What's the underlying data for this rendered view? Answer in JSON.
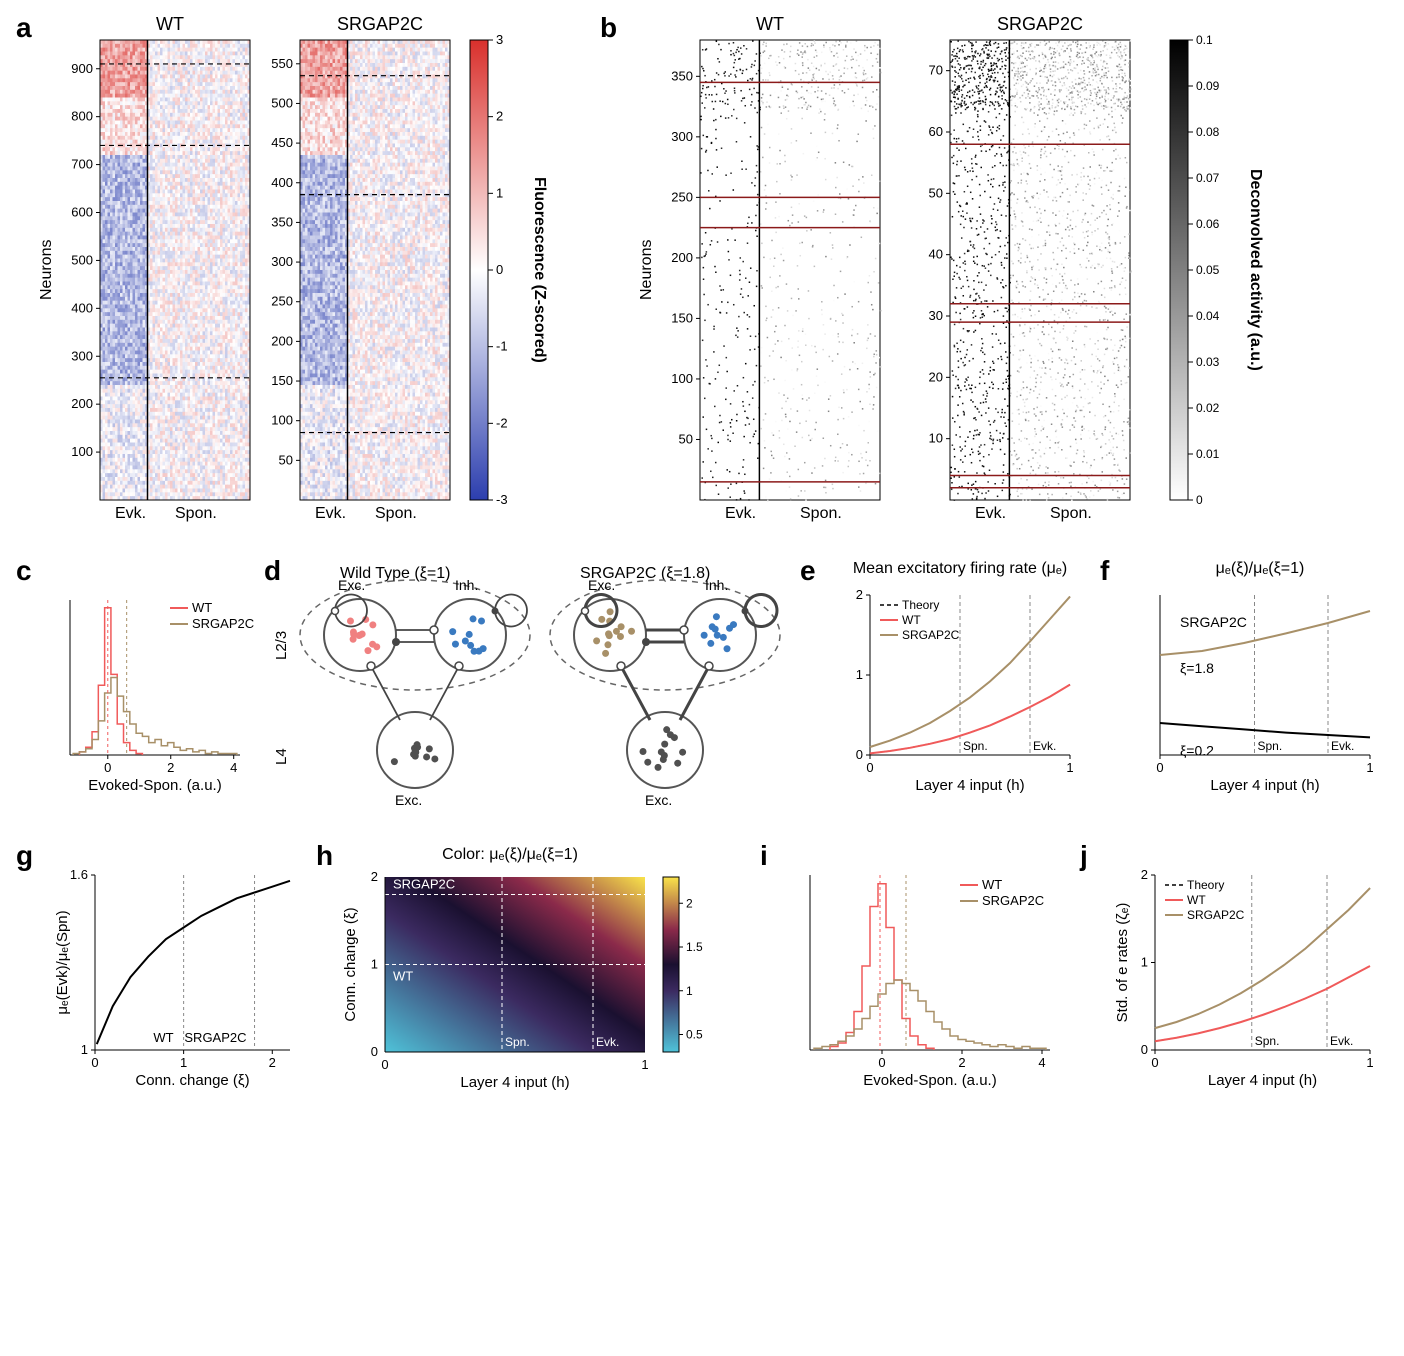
{
  "colors": {
    "wt": "#f05a5a",
    "srgap2c": "#a89068",
    "cb_pos": "#d9302c",
    "cb_neg": "#2c3eae",
    "cb_mid": "#ffffff",
    "gray_dark": "#404040",
    "black": "#000000",
    "exc_node_wt": "#f08080",
    "inh_node": "#3a7ac0",
    "l4_node": "#505050",
    "h_cmap_low": "#4fc3d9",
    "h_cmap_mid1": "#3b2a60",
    "h_cmap_mid2": "#1a1030",
    "h_cmap_high": "#f9e34a",
    "red_line": "#8b1a1a"
  },
  "panel_a": {
    "label": "a",
    "wt_title": "WT",
    "srgap2c_title": "SRGAP2C",
    "ylabel": "Neurons",
    "xlabel_evk": "Evk.",
    "xlabel_spon": "Spon.",
    "cbar_label": "Fluorescence (Z-scored)",
    "cbar_ticks": [
      -3,
      -2,
      -1,
      0,
      1,
      2,
      3
    ],
    "wt_yticks": [
      100,
      200,
      300,
      400,
      500,
      600,
      700,
      800,
      900
    ],
    "srgap2c_yticks": [
      50,
      100,
      150,
      200,
      250,
      300,
      350,
      400,
      450,
      500,
      550
    ]
  },
  "panel_b": {
    "label": "b",
    "wt_title": "WT",
    "srgap2c_title": "SRGAP2C",
    "ylabel": "Neurons",
    "xlabel_evk": "Evk.",
    "xlabel_spon": "Spon.",
    "cbar_label": "Deconvolved activity (a.u.)",
    "cbar_ticks": [
      0,
      0.01,
      0.02,
      0.03,
      0.04,
      0.05,
      0.06,
      0.07,
      0.08,
      0.09,
      0.1
    ],
    "wt_yticks": [
      50,
      100,
      150,
      200,
      250,
      300,
      350
    ],
    "srgap2c_yticks": [
      10,
      20,
      30,
      40,
      50,
      60,
      70
    ]
  },
  "panel_c": {
    "label": "c",
    "xlabel": "Evoked-Spon. (a.u.)",
    "xticks": [
      0,
      2,
      4
    ],
    "legend": [
      "WT",
      "SRGAP2C"
    ],
    "wt_bins": [
      [
        -0.8,
        0.02
      ],
      [
        -0.6,
        0.05
      ],
      [
        -0.4,
        0.15
      ],
      [
        -0.2,
        0.45
      ],
      [
        0.0,
        0.95
      ],
      [
        0.2,
        0.52
      ],
      [
        0.4,
        0.2
      ],
      [
        0.6,
        0.08
      ],
      [
        0.8,
        0.03
      ],
      [
        1.0,
        0.01
      ]
    ],
    "sg_bins": [
      [
        -1.0,
        0.01
      ],
      [
        -0.8,
        0.02
      ],
      [
        -0.6,
        0.04
      ],
      [
        -0.4,
        0.1
      ],
      [
        -0.2,
        0.22
      ],
      [
        0.0,
        0.4
      ],
      [
        0.2,
        0.5
      ],
      [
        0.4,
        0.38
      ],
      [
        0.6,
        0.28
      ],
      [
        0.8,
        0.2
      ],
      [
        1.0,
        0.14
      ],
      [
        1.2,
        0.12
      ],
      [
        1.4,
        0.08
      ],
      [
        1.6,
        0.1
      ],
      [
        1.8,
        0.06
      ],
      [
        2.0,
        0.08
      ],
      [
        2.2,
        0.05
      ],
      [
        2.4,
        0.03
      ],
      [
        2.6,
        0.04
      ],
      [
        2.8,
        0.02
      ],
      [
        3.0,
        0.03
      ],
      [
        3.2,
        0.01
      ],
      [
        3.4,
        0.02
      ],
      [
        3.6,
        0.01
      ],
      [
        3.8,
        0.01
      ],
      [
        4.0,
        0.01
      ]
    ],
    "wt_mean": 0.0,
    "sg_mean": 0.6
  },
  "panel_d": {
    "label": "d",
    "wt_title": "Wild Type (ξ=1)",
    "srgap2c_title": "SRGAP2C (ξ=1.8)",
    "exc_label": "Exc.",
    "inh_label": "Inh.",
    "layer23": "L2/3",
    "layer4": "L4"
  },
  "panel_e": {
    "label": "e",
    "title": "Mean excitatory firing rate (μₑ)",
    "xlabel": "Layer 4 input (h)",
    "legend": [
      "Theory",
      "WT",
      "SRGAP2C"
    ],
    "xticks": [
      0,
      1
    ],
    "yticks": [
      0,
      1,
      2
    ],
    "spn_x": 0.45,
    "evk_x": 0.8,
    "wt_curve": [
      [
        0,
        0.02
      ],
      [
        0.1,
        0.05
      ],
      [
        0.2,
        0.09
      ],
      [
        0.3,
        0.14
      ],
      [
        0.4,
        0.2
      ],
      [
        0.5,
        0.28
      ],
      [
        0.6,
        0.37
      ],
      [
        0.7,
        0.48
      ],
      [
        0.8,
        0.6
      ],
      [
        0.9,
        0.73
      ],
      [
        1.0,
        0.88
      ]
    ],
    "sg_curve": [
      [
        0,
        0.1
      ],
      [
        0.1,
        0.18
      ],
      [
        0.2,
        0.28
      ],
      [
        0.3,
        0.4
      ],
      [
        0.4,
        0.55
      ],
      [
        0.5,
        0.72
      ],
      [
        0.6,
        0.92
      ],
      [
        0.7,
        1.15
      ],
      [
        0.8,
        1.42
      ],
      [
        0.9,
        1.7
      ],
      [
        1.0,
        1.98
      ]
    ]
  },
  "panel_f": {
    "label": "f",
    "title": "μₑ(ξ)/μₑ(ξ=1)",
    "xlabel": "Layer 4 input (h)",
    "xticks": [
      0,
      1
    ],
    "spn_x": 0.45,
    "evk_x": 0.8,
    "label_sg": "SRGAP2C",
    "label_xi_hi": "ξ=1.8",
    "label_xi_lo": "ξ=0.2",
    "sg_curve": [
      [
        0,
        1.55
      ],
      [
        0.2,
        1.6
      ],
      [
        0.4,
        1.7
      ],
      [
        0.6,
        1.82
      ],
      [
        0.8,
        1.95
      ],
      [
        1.0,
        2.1
      ]
    ],
    "lo_curve": [
      [
        0,
        0.7
      ],
      [
        0.2,
        0.66
      ],
      [
        0.4,
        0.62
      ],
      [
        0.6,
        0.58
      ],
      [
        0.8,
        0.55
      ],
      [
        1.0,
        0.52
      ]
    ]
  },
  "panel_g": {
    "label": "g",
    "ylabel": "μₑ(Evk)/μₑ(Spn)",
    "xlabel": "Conn. change (ξ)",
    "xticks": [
      0,
      1,
      2
    ],
    "yticks": [
      1.0,
      1.6
    ],
    "wt_x": 1.0,
    "sg_x": 1.8,
    "curve": [
      [
        0.02,
        1.02
      ],
      [
        0.2,
        1.15
      ],
      [
        0.4,
        1.25
      ],
      [
        0.6,
        1.32
      ],
      [
        0.8,
        1.38
      ],
      [
        1.0,
        1.42
      ],
      [
        1.2,
        1.46
      ],
      [
        1.4,
        1.49
      ],
      [
        1.6,
        1.52
      ],
      [
        1.8,
        1.54
      ],
      [
        2.0,
        1.56
      ],
      [
        2.2,
        1.58
      ]
    ],
    "wt_text": "WT",
    "sg_text": "SRGAP2C"
  },
  "panel_h": {
    "label": "h",
    "title": "Color: μₑ(ξ)/μₑ(ξ=1)",
    "ylabel": "Conn. change (ξ)",
    "xlabel": "Layer 4 input (h)",
    "xticks": [
      0,
      1
    ],
    "yticks": [
      0,
      1,
      2
    ],
    "cbar_ticks": [
      0.5,
      1.0,
      1.5,
      2.0
    ],
    "spn_x": 0.45,
    "evk_x": 0.8,
    "wt_y": 1.0,
    "sg_y": 1.8,
    "wt_text": "WT",
    "sg_text": "SRGAP2C",
    "spn_text": "Spn.",
    "evk_text": "Evk."
  },
  "panel_i": {
    "label": "i",
    "xlabel": "Evoked-Spon. (a.u.)",
    "xticks": [
      0,
      2,
      4
    ],
    "legend": [
      "WT",
      "SRGAP2C"
    ],
    "wt_bins": [
      [
        -1.2,
        0.02
      ],
      [
        -1.0,
        0.04
      ],
      [
        -0.8,
        0.1
      ],
      [
        -0.6,
        0.22
      ],
      [
        -0.4,
        0.48
      ],
      [
        -0.2,
        0.82
      ],
      [
        0.0,
        0.95
      ],
      [
        0.2,
        0.7
      ],
      [
        0.4,
        0.4
      ],
      [
        0.6,
        0.18
      ],
      [
        0.8,
        0.08
      ],
      [
        1.0,
        0.03
      ],
      [
        1.2,
        0.01
      ]
    ],
    "sg_bins": [
      [
        -1.6,
        0.01
      ],
      [
        -1.4,
        0.02
      ],
      [
        -1.2,
        0.03
      ],
      [
        -1.0,
        0.05
      ],
      [
        -0.8,
        0.08
      ],
      [
        -0.6,
        0.12
      ],
      [
        -0.4,
        0.18
      ],
      [
        -0.2,
        0.25
      ],
      [
        0.0,
        0.32
      ],
      [
        0.2,
        0.38
      ],
      [
        0.4,
        0.4
      ],
      [
        0.6,
        0.38
      ],
      [
        0.8,
        0.34
      ],
      [
        1.0,
        0.28
      ],
      [
        1.2,
        0.22
      ],
      [
        1.4,
        0.16
      ],
      [
        1.6,
        0.12
      ],
      [
        1.8,
        0.08
      ],
      [
        2.0,
        0.06
      ],
      [
        2.2,
        0.05
      ],
      [
        2.4,
        0.04
      ],
      [
        2.6,
        0.03
      ],
      [
        2.8,
        0.02
      ],
      [
        3.0,
        0.03
      ],
      [
        3.2,
        0.02
      ],
      [
        3.4,
        0.01
      ],
      [
        3.6,
        0.02
      ],
      [
        3.8,
        0.01
      ],
      [
        4.0,
        0.01
      ]
    ],
    "wt_mean": -0.05,
    "sg_mean": 0.6
  },
  "panel_j": {
    "label": "j",
    "ylabel": "Std. of e rates (ζₑ)",
    "xlabel": "Layer 4 input (h)",
    "legend": [
      "Theory",
      "WT",
      "SRGAP2C"
    ],
    "xticks": [
      0,
      1
    ],
    "yticks": [
      0,
      1,
      2
    ],
    "spn_x": 0.45,
    "evk_x": 0.8,
    "wt_curve": [
      [
        0,
        0.1
      ],
      [
        0.1,
        0.14
      ],
      [
        0.2,
        0.19
      ],
      [
        0.3,
        0.25
      ],
      [
        0.4,
        0.32
      ],
      [
        0.5,
        0.4
      ],
      [
        0.6,
        0.49
      ],
      [
        0.7,
        0.59
      ],
      [
        0.8,
        0.7
      ],
      [
        0.9,
        0.83
      ],
      [
        1.0,
        0.96
      ]
    ],
    "sg_curve": [
      [
        0,
        0.25
      ],
      [
        0.1,
        0.32
      ],
      [
        0.2,
        0.41
      ],
      [
        0.3,
        0.52
      ],
      [
        0.4,
        0.65
      ],
      [
        0.5,
        0.8
      ],
      [
        0.6,
        0.97
      ],
      [
        0.7,
        1.16
      ],
      [
        0.8,
        1.38
      ],
      [
        0.9,
        1.6
      ],
      [
        1.0,
        1.85
      ]
    ]
  }
}
